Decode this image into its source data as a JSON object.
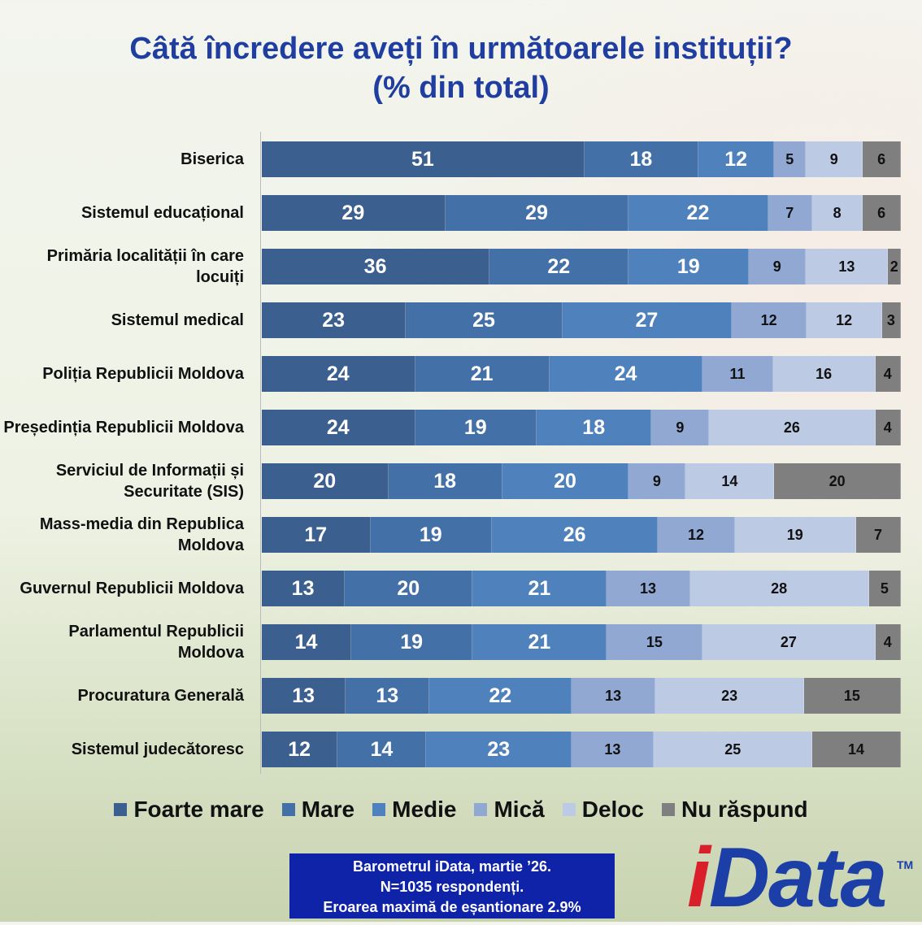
{
  "chart_data": {
    "type": "bar",
    "orientation": "horizontal-stacked-100",
    "title_lines": [
      "Câtă încredere aveți în următoarele instituții?",
      "(% din total)"
    ],
    "categories": [
      "Biserica",
      "Sistemul educațional",
      "Primăria localității în care locuiți",
      "Sistemul medical",
      "Poliția Republicii Moldova",
      "Președinția Republicii Moldova",
      "Serviciul de Informații și Securitate (SIS)",
      "Mass-media din Republica Moldova",
      "Guvernul Republicii Moldova",
      "Parlamentul Republicii Moldova",
      "Procuratura Generală",
      "Sistemul judecătoresc"
    ],
    "series": [
      {
        "name": "Foarte mare",
        "color": "#3b5f8e",
        "text_color": "#ffffff",
        "values": [
          51,
          29,
          36,
          23,
          24,
          24,
          20,
          17,
          13,
          14,
          13,
          12
        ]
      },
      {
        "name": "Mare",
        "color": "#4470a8",
        "text_color": "#ffffff",
        "values": [
          18,
          29,
          22,
          25,
          21,
          19,
          18,
          19,
          20,
          19,
          13,
          14
        ]
      },
      {
        "name": "Medie",
        "color": "#4f81bd",
        "text_color": "#ffffff",
        "values": [
          12,
          22,
          19,
          27,
          24,
          18,
          20,
          26,
          21,
          21,
          22,
          23
        ]
      },
      {
        "name": "Mică",
        "color": "#90a8d2",
        "text_color": "#111111",
        "values": [
          5,
          7,
          9,
          12,
          11,
          9,
          9,
          12,
          13,
          15,
          13,
          13
        ]
      },
      {
        "name": "Deloc",
        "color": "#bccae4",
        "text_color": "#111111",
        "values": [
          9,
          8,
          13,
          12,
          16,
          26,
          14,
          19,
          28,
          27,
          23,
          25
        ]
      },
      {
        "name": "Nu răspund",
        "color": "#7f7f7f",
        "text_color": "#111111",
        "values": [
          6,
          6,
          2,
          3,
          4,
          4,
          20,
          7,
          5,
          4,
          15,
          14
        ]
      }
    ],
    "legend_position": "bottom",
    "grid": false
  },
  "footer": {
    "note_lines": [
      "Barometrul iData, martie ’26.",
      "N=1035 respondenți.",
      "Eroarea maximă de eșantionare 2.9%"
    ],
    "logo_i": "i",
    "logo_rest": "Data",
    "logo_tm": "TM"
  }
}
